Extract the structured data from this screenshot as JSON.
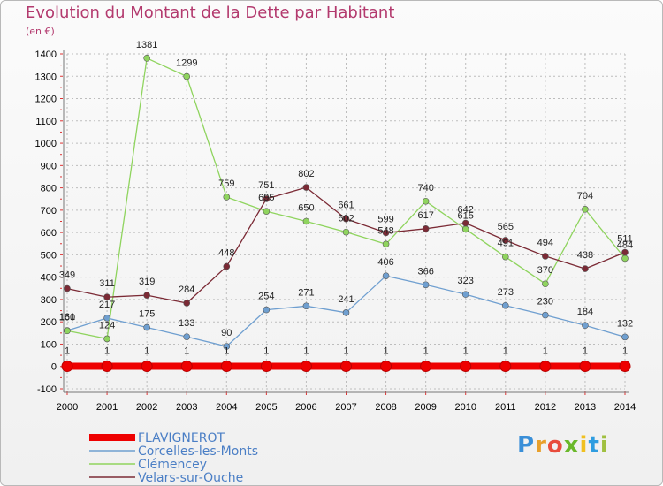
{
  "title": "Evolution du Montant de la Dette par Habitant",
  "unit": "(en €)",
  "logo": {
    "text": "Proxiti",
    "letter_colors": [
      "#3a8fd8",
      "#e8a02b",
      "#e84c3c",
      "#6ab82a",
      "#f0c020",
      "#2f9de0",
      "#a0c040"
    ]
  },
  "chart_data": {
    "type": "line",
    "title": "Evolution du Montant de la Dette par Habitant",
    "ylabel": "(en €)",
    "xlabel": "",
    "x": [
      "2000",
      "2001",
      "2002",
      "2003",
      "2004",
      "2005",
      "2006",
      "2007",
      "2008",
      "2009",
      "2010",
      "2011",
      "2012",
      "2013",
      "2014"
    ],
    "ylim": [
      -100,
      1400
    ],
    "yticks": [
      "-100",
      "0",
      "100",
      "200",
      "300",
      "400",
      "500",
      "600",
      "700",
      "800",
      "900",
      "1000",
      "1100",
      "1200",
      "1300",
      "1400"
    ],
    "grid": "horizontal dashed",
    "legend_position": "bottom-left",
    "series": [
      {
        "name": "FLAVIGNEROT",
        "color": "#ee0000",
        "values": [
          1,
          1,
          1,
          1,
          1,
          1,
          1,
          1,
          1,
          1,
          1,
          1,
          1,
          1,
          1
        ],
        "labels": [
          "1",
          "1",
          "1",
          "1",
          "1",
          "1",
          "1",
          "1",
          "1",
          "1",
          "1",
          "1",
          "1",
          "1",
          "1"
        ]
      },
      {
        "name": "Corcelles-les-Monts",
        "color": "#6f9fd0",
        "values": [
          161,
          217,
          175,
          133,
          90,
          254,
          271,
          241,
          406,
          366,
          323,
          273,
          230,
          184,
          132
        ],
        "labels": [
          "161",
          "217",
          "175",
          "133",
          "90",
          "254",
          "271",
          "241",
          "406",
          "366",
          "323",
          "273",
          "230",
          "184",
          "132"
        ]
      },
      {
        "name": "Clémencey",
        "color": "#8fd45e",
        "values": [
          160,
          124,
          1381,
          1299,
          759,
          695,
          650,
          602,
          548,
          740,
          615,
          491,
          370,
          704,
          484
        ],
        "labels": [
          "160",
          "124",
          "1381",
          "1299",
          "759",
          "695",
          "650",
          "602",
          "548",
          "740",
          "615",
          "491",
          "370",
          "704",
          "484"
        ]
      },
      {
        "name": "Velars-sur-Ouche",
        "color": "#7b2a35",
        "values": [
          349,
          311,
          319,
          284,
          448,
          751,
          802,
          661,
          599,
          617,
          642,
          565,
          494,
          438,
          511
        ],
        "labels": [
          "349",
          "311",
          "319",
          "284",
          "448",
          "751",
          "802",
          "661",
          "599",
          "617",
          "642",
          "565",
          "494",
          "438",
          "511"
        ]
      }
    ]
  }
}
